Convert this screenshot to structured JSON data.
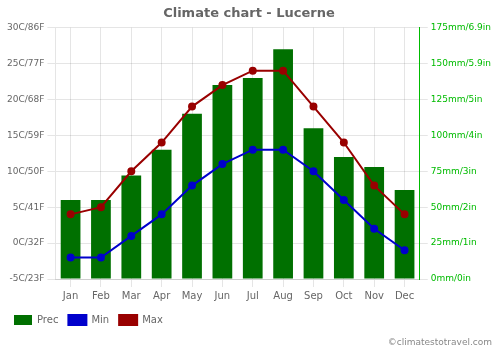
{
  "chart_data": {
    "type": "bar",
    "title": "Climate chart - Lucerne",
    "categories": [
      "Jan",
      "Feb",
      "Mar",
      "Apr",
      "May",
      "Jun",
      "Jul",
      "Aug",
      "Sep",
      "Oct",
      "Nov",
      "Dec"
    ],
    "series": [
      {
        "name": "Prec",
        "type": "bar",
        "axis": "y2",
        "color": "#007000",
        "values": [
          55,
          55,
          72,
          90,
          115,
          135,
          140,
          160,
          105,
          85,
          78,
          62
        ]
      },
      {
        "name": "Min",
        "type": "line",
        "marker": "circle",
        "color": "#0000cc",
        "values": [
          -2,
          -2,
          1,
          4,
          8,
          11,
          13,
          13,
          10,
          6,
          2,
          -1
        ]
      },
      {
        "name": "Max",
        "type": "line",
        "marker": "circle",
        "color": "#990000",
        "values": [
          4,
          5,
          10,
          14,
          19,
          22,
          24,
          24,
          19,
          14,
          8,
          4
        ]
      }
    ],
    "ylim": [
      -5,
      30
    ],
    "yticks": [
      {
        "value": -5,
        "label": "-5C/23F"
      },
      {
        "value": 0,
        "label": "0C/32F"
      },
      {
        "value": 5,
        "label": "5C/41F"
      },
      {
        "value": 10,
        "label": "10C/50F"
      },
      {
        "value": 15,
        "label": "15C/59F"
      },
      {
        "value": 20,
        "label": "20C/68F"
      },
      {
        "value": 25,
        "label": "25C/77F"
      },
      {
        "value": 30,
        "label": "30C/86F"
      }
    ],
    "y2lim": [
      0,
      175
    ],
    "y2ticks": [
      {
        "value": 0,
        "label": "0mm/0in"
      },
      {
        "value": 25,
        "label": "25mm/1in"
      },
      {
        "value": 50,
        "label": "50mm/2in"
      },
      {
        "value": 75,
        "label": "75mm/3in"
      },
      {
        "value": 100,
        "label": "100mm/4in"
      },
      {
        "value": 125,
        "label": "125mm/5in"
      },
      {
        "value": 150,
        "label": "150mm/5.9in"
      },
      {
        "value": 175,
        "label": "175mm/6.9in"
      }
    ],
    "grid": true,
    "legend": "bottom",
    "annotations": [
      "©climatestotravel.com"
    ]
  }
}
